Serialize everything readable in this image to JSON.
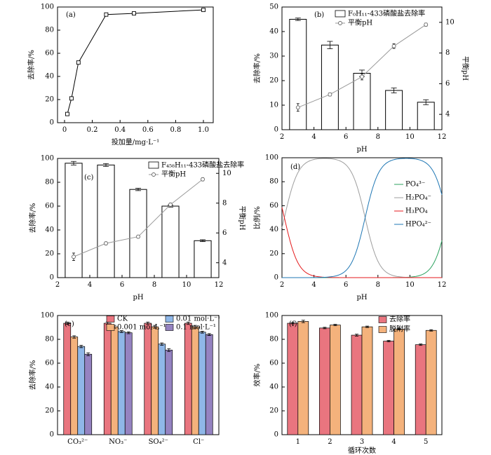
{
  "colors": {
    "axis": "#000000",
    "bar_outline": "#000000",
    "line": "#999999",
    "ph_marker_fill": "#ffffff",
    "species": [
      "#2ca25f",
      "#9e9e9e",
      "#e41a1c",
      "#1f77b4"
    ],
    "ion_bars": [
      "#e9757f",
      "#f4b27c",
      "#8fb7e8",
      "#9583c1"
    ],
    "cycle_bars": [
      "#e9757f",
      "#f4b27c"
    ]
  },
  "chart_data": [
    {
      "id": "a",
      "panel_label": "(a)",
      "type": "line",
      "xlabel": "投加量/mg·L⁻¹",
      "ylabel": "去除率/%",
      "xlim": [
        0,
        1.0
      ],
      "ylim": [
        0,
        100
      ],
      "xticks": [
        "0",
        "0.2",
        "0.4",
        "0.6",
        "0.8",
        "1.0"
      ],
      "yticks": [
        "0",
        "20",
        "40",
        "60",
        "80",
        "100"
      ],
      "x": [
        0.02,
        0.05,
        0.1,
        0.3,
        0.5,
        1.0
      ],
      "y": [
        7.5,
        21,
        52,
        93.5,
        94.5,
        97.5
      ],
      "err": [
        0.8,
        1.2,
        1.0,
        1.0,
        0.8,
        1.2
      ]
    },
    {
      "id": "b",
      "panel_label": "(b)",
      "type": "bar",
      "xlabel": "pH",
      "ylabel": "去除率/%",
      "ylabel_right": "平衡pH",
      "xlim": [
        2,
        12
      ],
      "ylim": [
        0,
        50
      ],
      "ylim_right": [
        3,
        11
      ],
      "xticks": [
        "2",
        "4",
        "6",
        "8",
        "10",
        "12"
      ],
      "yticks": [
        "0",
        "10",
        "20",
        "30",
        "40",
        "50"
      ],
      "yticks_right": [
        "4",
        "6",
        "8",
        "10"
      ],
      "legend": [
        "F₀H₁₁-433磷酸盐去除率",
        "平衡pH"
      ],
      "categories": [
        3,
        5,
        7,
        9,
        11
      ],
      "values": [
        45,
        34.5,
        23,
        16,
        11.2
      ],
      "err": [
        0.5,
        1.5,
        1.3,
        1.0,
        1.0
      ],
      "ph_x": [
        3,
        5,
        7,
        9,
        11
      ],
      "ph_y": [
        4.45,
        5.3,
        6.45,
        8.45,
        9.85
      ],
      "ph_err": [
        0.25,
        0.1,
        0.2,
        0.15,
        0.1
      ]
    },
    {
      "id": "c",
      "panel_label": "(c)",
      "type": "bar",
      "xlabel": "pH",
      "ylabel": "去除率/%",
      "ylabel_right": "平衡pH",
      "xlim": [
        2,
        12
      ],
      "ylim": [
        0,
        100
      ],
      "ylim_right": [
        3,
        11
      ],
      "xticks": [
        "2",
        "4",
        "6",
        "8",
        "10",
        "12"
      ],
      "yticks": [
        "0",
        "20",
        "40",
        "60",
        "80",
        "100"
      ],
      "yticks_right": [
        "4",
        "6",
        "8",
        "10"
      ],
      "legend": [
        "F₄₅₈H₁₁-433磷酸盐去除率",
        "平衡pH"
      ],
      "categories": [
        3,
        5,
        7,
        9,
        11
      ],
      "values": [
        96,
        94.5,
        74,
        60,
        31
      ],
      "err": [
        1.5,
        1.2,
        1.0,
        0.8,
        0.8
      ],
      "ph_x": [
        3,
        5,
        7,
        9,
        11
      ],
      "ph_y": [
        4.4,
        5.3,
        5.75,
        7.9,
        9.6
      ],
      "ph_err": [
        0.25,
        0.1,
        0.1,
        0.1,
        0.1
      ]
    },
    {
      "id": "d",
      "panel_label": "(d)",
      "type": "line",
      "xlabel": "pH",
      "ylabel": "比例/%",
      "xlim": [
        2,
        12
      ],
      "ylim": [
        0,
        100
      ],
      "xticks": [
        "2",
        "4",
        "6",
        "8",
        "10",
        "12"
      ],
      "yticks": [
        "0",
        "20",
        "40",
        "60",
        "80",
        "100"
      ],
      "pKa": [
        2.15,
        7.2,
        12.35
      ],
      "series": [
        {
          "name": "PO₄³⁻"
        },
        {
          "name": "H₂PO₄⁻"
        },
        {
          "name": "H₃PO₄"
        },
        {
          "name": "HPO₄²⁻"
        }
      ]
    },
    {
      "id": "e",
      "panel_label": "(e)",
      "type": "bar",
      "ylabel": "去除率/%",
      "ylim": [
        0,
        100
      ],
      "yticks": [
        "0",
        "20",
        "40",
        "60",
        "80",
        "100"
      ],
      "categories": [
        "CO₃²⁻",
        "NO₃⁻",
        "SO₄²⁻",
        "Cl⁻"
      ],
      "series": [
        {
          "name": "CK",
          "values": [
            93.5,
            93.5,
            93.5,
            93.5
          ],
          "err": [
            1,
            1,
            1,
            1
          ]
        },
        {
          "name": "0.001 mol·L⁻¹",
          "values": [
            82,
            90.5,
            90.5,
            90.5
          ],
          "err": [
            1,
            1.2,
            1.2,
            1.2
          ]
        },
        {
          "name": "0.01 mol·L⁻¹",
          "values": [
            74,
            86.5,
            76,
            86
          ],
          "err": [
            1,
            0.8,
            1,
            0.8
          ]
        },
        {
          "name": "0.1 mol·L⁻¹",
          "values": [
            67.5,
            85.5,
            71,
            84
          ],
          "err": [
            1.2,
            0.8,
            1.2,
            0.8
          ]
        }
      ]
    },
    {
      "id": "f",
      "panel_label": "(f)",
      "type": "bar",
      "xlabel": "循环次数",
      "ylabel": "效率/%",
      "ylim": [
        0,
        100
      ],
      "yticks": [
        "0",
        "20",
        "40",
        "60",
        "80",
        "100"
      ],
      "categories": [
        "1",
        "2",
        "3",
        "4",
        "5"
      ],
      "series": [
        {
          "name": "去除率",
          "values": [
            93.5,
            89.5,
            83.5,
            78.5,
            75.5
          ],
          "err": [
            0.6,
            0.6,
            0.8,
            0.6,
            0.6
          ]
        },
        {
          "name": "脱附率",
          "values": [
            95,
            92,
            90.5,
            88.5,
            87.5
          ],
          "err": [
            1.0,
            0.6,
            0.6,
            0.6,
            0.6
          ]
        }
      ]
    }
  ]
}
